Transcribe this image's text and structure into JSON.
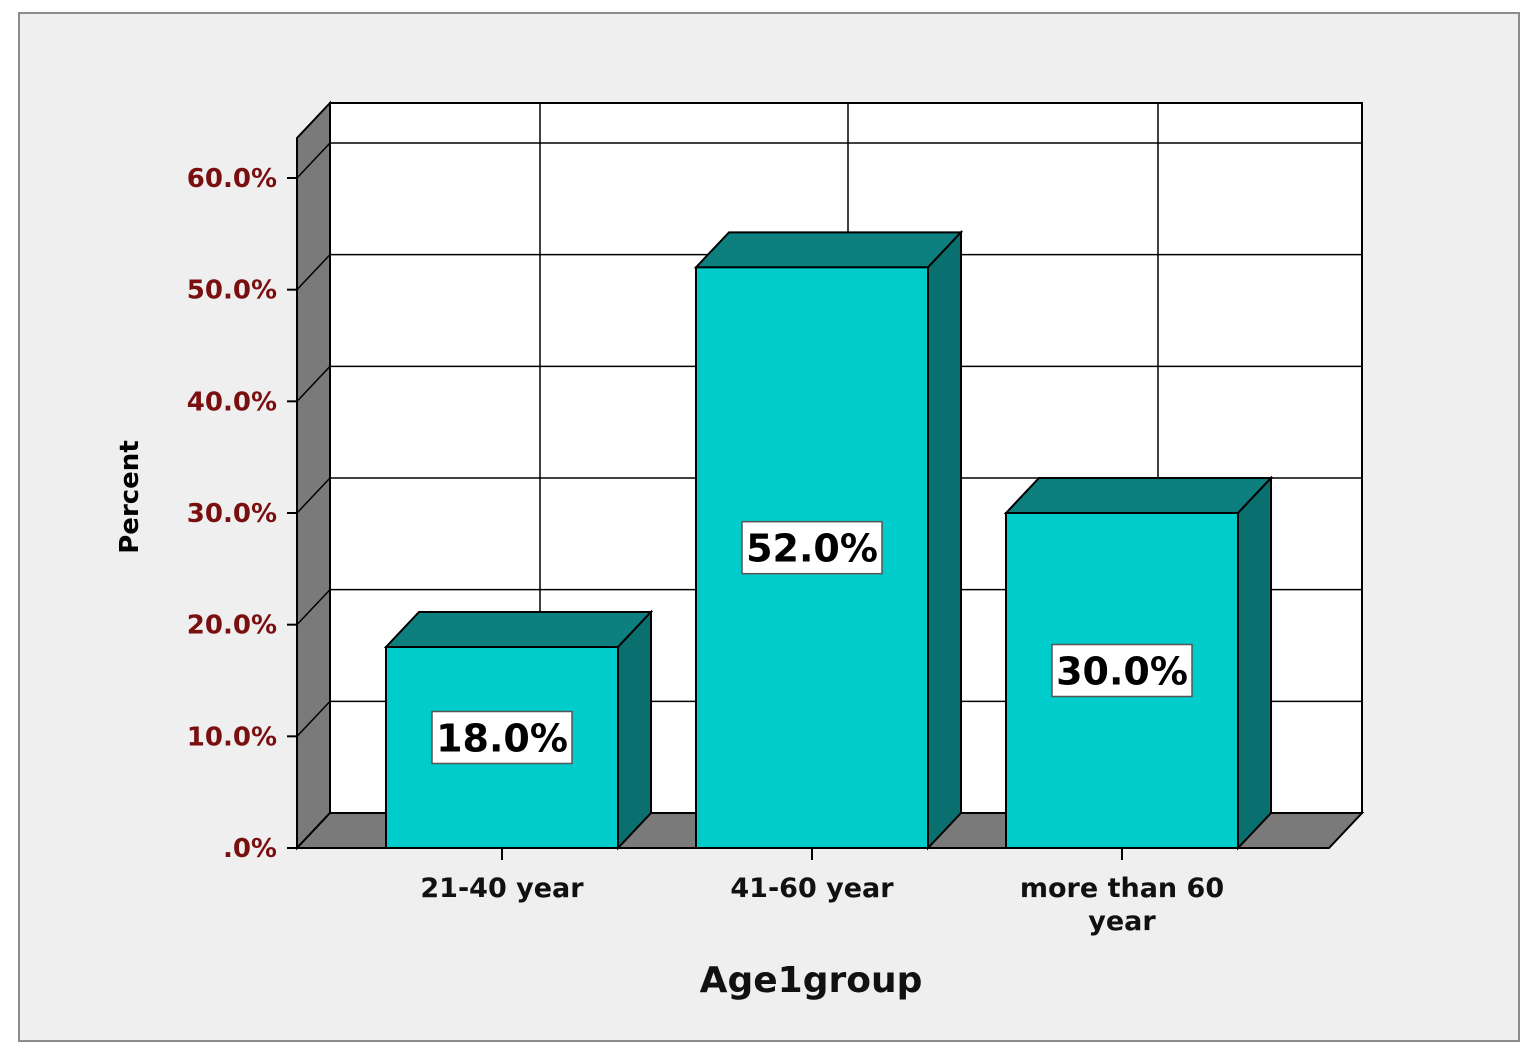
{
  "chart_data": {
    "type": "bar",
    "categories": [
      "21-40 year",
      "41-60 year",
      "more than 60 year"
    ],
    "values": [
      18.0,
      52.0,
      30.0
    ],
    "data_labels": [
      "18.0%",
      "52.0%",
      "30.0%"
    ],
    "xlabel": "Age1group",
    "ylabel": "Percent",
    "ylim": [
      0,
      60
    ],
    "yticks": [
      {
        "value": 0,
        "label": ".0%"
      },
      {
        "value": 10,
        "label": "10.0%"
      },
      {
        "value": 20,
        "label": "20.0%"
      },
      {
        "value": 30,
        "label": "30.0%"
      },
      {
        "value": 40,
        "label": "40.0%"
      },
      {
        "value": 50,
        "label": "50.0%"
      },
      {
        "value": 60,
        "label": "60.0%"
      }
    ],
    "grid": true,
    "style": "3d",
    "colors": {
      "bar_front": "#00cccc",
      "bar_top": "#0d7f7f",
      "bar_side": "#0a6f6f",
      "wall_side": "#7a7a7a",
      "floor": "#7a7a7a",
      "plot_background": "#ffffff",
      "tick_label": "#7a0f0f"
    }
  }
}
